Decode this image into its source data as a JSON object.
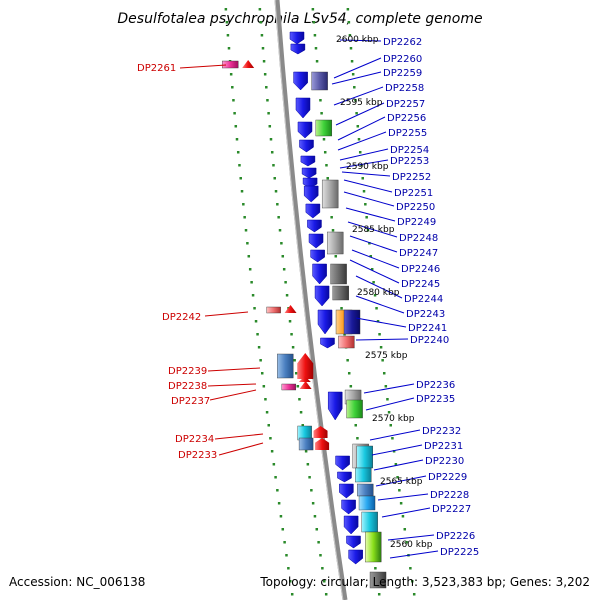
{
  "title": "Desulfotalea psychrophila LSv54, complete genome",
  "footer": {
    "accession": "Accession: NC_006138",
    "stats": "Topology: circular; Length: 3,523,383 bp; Genes: 3,202"
  },
  "kbp_marks": [
    "2600 kbp",
    "2595 kbp",
    "2590 kbp",
    "2585 kbp",
    "2580 kbp",
    "2575 kbp",
    "2570 kbp",
    "2565 kbp",
    "2560 kbp"
  ],
  "left_labels": [
    "DP2261",
    "DP2242",
    "DP2239",
    "DP2238",
    "DP2237",
    "DP2234",
    "DP2233"
  ],
  "right_labels": [
    "DP2262",
    "DP2260",
    "DP2259",
    "DP2258",
    "DP2257",
    "DP2256",
    "DP2255",
    "DP2254",
    "DP2253",
    "DP2252",
    "DP2251",
    "DP2250",
    "DP2249",
    "DP2248",
    "DP2247",
    "DP2246",
    "DP2245",
    "DP2244",
    "DP2243",
    "DP2241",
    "DP2240",
    "DP2236",
    "DP2235",
    "DP2232",
    "DP2231",
    "DP2230",
    "DP2229",
    "DP2228",
    "DP2227",
    "DP2226",
    "DP2225"
  ],
  "colors": {
    "left_label": "#cc0000",
    "right_label": "#0000aa",
    "leader_left": "#cc0000",
    "leader_right": "#0000cc",
    "backbone": "#8a8a8a",
    "dots": "#2a8a2a",
    "reverse_gene": "#1a1ae6",
    "forward_gene": "#ee1111",
    "forward_pink": "#ee3399"
  }
}
